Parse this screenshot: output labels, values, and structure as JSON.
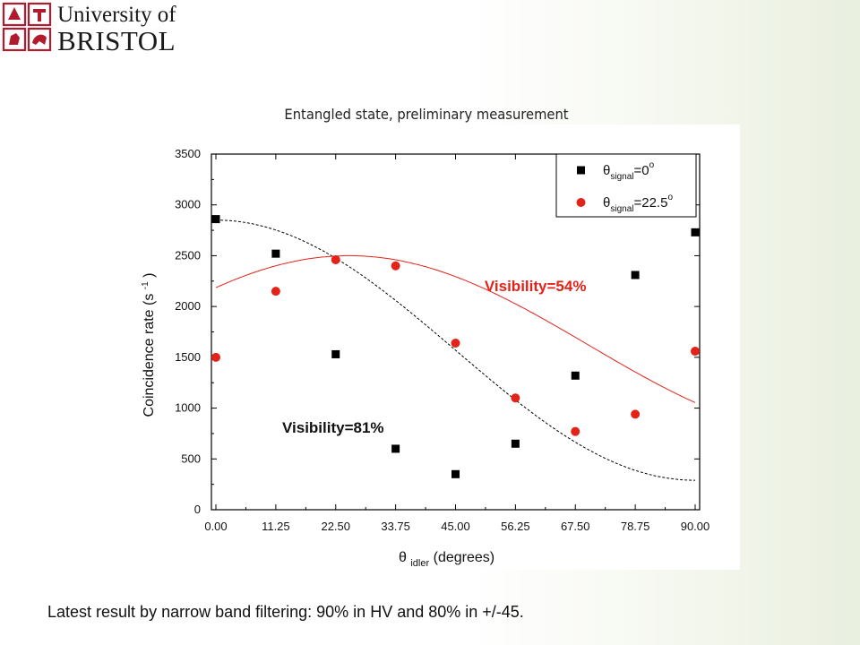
{
  "logo": {
    "line1": "University of",
    "line2": "BRISTOL",
    "brand_color": "#b01c2e"
  },
  "caption": "Latest result by narrow band filtering: 90% in HV and 80% in  +/-45.",
  "chart_data": {
    "type": "scatter",
    "title": "Entangled state, preliminary measurement",
    "xlabel_main": "θ",
    "xlabel_sub": "idler",
    "xlabel_rest": " (degrees)",
    "ylabel": "Coincidence rate (s",
    "ylabel_sup": "-1",
    "ylabel_close": ")",
    "xlim": [
      0,
      90
    ],
    "ylim": [
      0,
      3500
    ],
    "xticks": [
      "0.00",
      "11.25",
      "22.50",
      "33.75",
      "45.00",
      "56.25",
      "67.50",
      "78.75",
      "90.00"
    ],
    "xtick_values": [
      0,
      11.25,
      22.5,
      33.75,
      45,
      56.25,
      67.5,
      78.75,
      90
    ],
    "yticks": [
      "0",
      "500",
      "1000",
      "1500",
      "2000",
      "2500",
      "3000",
      "3500"
    ],
    "ytick_values": [
      0,
      500,
      1000,
      1500,
      2000,
      2500,
      3000,
      3500
    ],
    "legend_position": "top-right",
    "series": [
      {
        "marker": "square",
        "color": "#000000",
        "legend": {
          "sym": "θ",
          "sub": "signal",
          "val": "=0",
          "sup": "o"
        },
        "x": [
          0,
          11.25,
          22.5,
          33.75,
          45,
          56.25,
          67.5,
          78.75,
          90
        ],
        "y": [
          2860,
          2520,
          1530,
          600,
          350,
          650,
          1320,
          2310,
          2730
        ],
        "fit": {
          "style": "dashed",
          "mean": 1570,
          "amplitude": 1280,
          "phase_deg": 0
        }
      },
      {
        "marker": "circle",
        "color": "#e32219",
        "legend": {
          "sym": "θ",
          "sub": "signal",
          "val": "=22.5",
          "sup": "o"
        },
        "x": [
          0,
          11.25,
          22.5,
          33.75,
          45,
          56.25,
          67.5,
          78.75,
          90
        ],
        "y": [
          1500,
          2150,
          2460,
          2400,
          1640,
          1100,
          770,
          940,
          1560
        ],
        "fit": {
          "style": "solid",
          "mean": 1620,
          "amplitude": 880,
          "phase_deg": 25
        }
      }
    ],
    "annotations": [
      {
        "text": "Visibility=54%",
        "color": "#e32219",
        "x": 60,
        "y": 2150
      },
      {
        "text": "Visibility=81%",
        "color": "#111111",
        "x": 22,
        "y": 760
      }
    ]
  }
}
